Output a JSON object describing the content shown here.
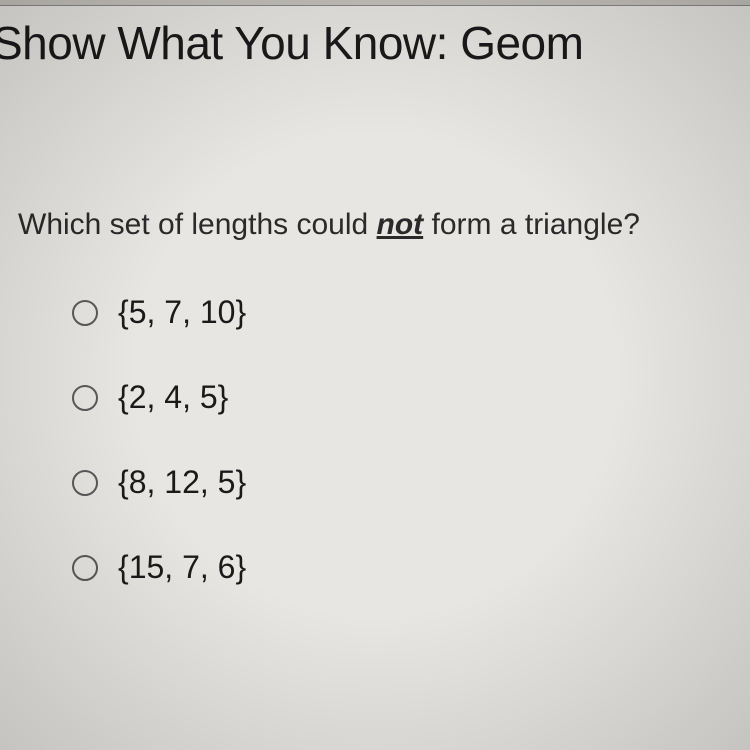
{
  "header": {
    "title": "Show What You Know: Geom"
  },
  "question": {
    "prefix": "Which set of lengths could ",
    "emphasis": "not",
    "suffix": " form a triangle?"
  },
  "options": [
    {
      "label": "{5, 7, 10}"
    },
    {
      "label": "{2, 4, 5}"
    },
    {
      "label": "{8, 12, 5}"
    },
    {
      "label": "{15, 7, 6}"
    }
  ],
  "colors": {
    "background": "#e8e6e2",
    "text": "#1a1a1a",
    "radio_border": "#5a5a5a"
  }
}
